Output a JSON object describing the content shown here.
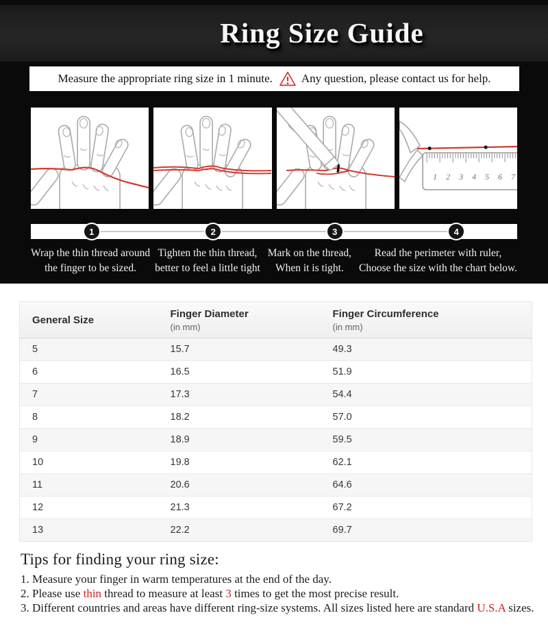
{
  "title": "Ring Size Guide",
  "banner": {
    "before": "Measure the appropriate ring size in 1 minute.",
    "after": "Any question, please contact us for help.",
    "icon": "warning-triangle-icon"
  },
  "steps": [
    {
      "num": "1",
      "caption_line1": "Wrap the thin thread around",
      "caption_line2": "the finger to be sized."
    },
    {
      "num": "2",
      "caption_line1": "Tighten the thin thread,",
      "caption_line2": "better to feel a little tight"
    },
    {
      "num": "3",
      "caption_line1": "Mark on the thread,",
      "caption_line2": "When it is tight."
    },
    {
      "num": "4",
      "caption_line1": "Read the perimeter with ruler,",
      "caption_line2": "Choose the size with the chart below."
    }
  ],
  "size_table": {
    "columns": [
      {
        "label": "General Size",
        "sub": ""
      },
      {
        "label": "Finger Diameter",
        "sub": "(in mm)"
      },
      {
        "label": "Finger Circumference",
        "sub": "(in mm)"
      }
    ],
    "rows": [
      [
        "5",
        "15.7",
        "49.3"
      ],
      [
        "6",
        "16.5",
        "51.9"
      ],
      [
        "7",
        "17.3",
        "54.4"
      ],
      [
        "8",
        "18.2",
        "57.0"
      ],
      [
        "9",
        "18.9",
        "59.5"
      ],
      [
        "10",
        "19.8",
        "62.1"
      ],
      [
        "11",
        "20.6",
        "64.6"
      ],
      [
        "12",
        "21.3",
        "67.2"
      ],
      [
        "13",
        "22.2",
        "69.7"
      ]
    ]
  },
  "tips": {
    "title": "Tips for finding your ring size:",
    "items": [
      [
        {
          "text": "1. Measure your finger in warm temperatures at the end of the day."
        }
      ],
      [
        {
          "text": "2. Please use "
        },
        {
          "text": "thin",
          "red": true
        },
        {
          "text": " thread to measure at least "
        },
        {
          "text": "3",
          "red": true
        },
        {
          "text": " times to get the most precise result."
        }
      ],
      [
        {
          "text": "3. Different countries and areas have different ring-size systems. All sizes listed here are standard "
        },
        {
          "text": "U.S.A",
          "red": true
        },
        {
          "text": " sizes."
        }
      ]
    ]
  },
  "ruler": {
    "numbers": [
      "1",
      "2",
      "3",
      "4",
      "5",
      "6",
      "7"
    ]
  },
  "colors": {
    "red_accent": "#cc2222",
    "thread_red": "#d03a30",
    "header_bg": "#1e1e1e",
    "section_bg": "#0a0a0a",
    "stripe_gray": "#f6f6f6"
  }
}
